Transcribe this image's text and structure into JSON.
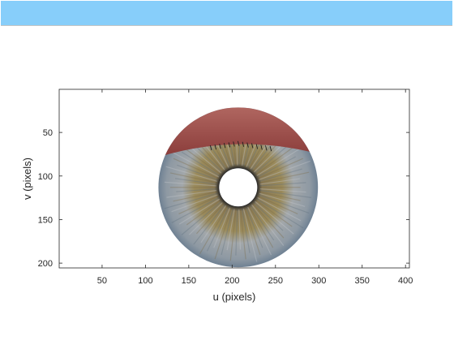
{
  "window": {
    "title_bar_color": "#87cefa"
  },
  "chart_data": {
    "type": "image",
    "image_subject": "iris",
    "xlabel": "u (pixels)",
    "ylabel": "v (pixels)",
    "xlim": [
      0.5,
      404.5
    ],
    "ylim": [
      0.5,
      205.5
    ],
    "y_direction": "reverse",
    "xticks": [
      50,
      100,
      150,
      200,
      250,
      300,
      350,
      400
    ],
    "yticks": [
      50,
      100,
      150,
      200
    ],
    "grid": false,
    "iris_center": [
      207,
      113
    ],
    "iris_radius": 92,
    "pupil_radius": 22,
    "colors": {
      "background": "#ffffff",
      "axis": "#262626",
      "iris_outer": "#6f8193",
      "iris_mid": "#a2a7aa",
      "iris_inner": "#9a8a5a",
      "pupil_ring": "#2a2a2a",
      "eyelid": "#9a4a46"
    }
  }
}
